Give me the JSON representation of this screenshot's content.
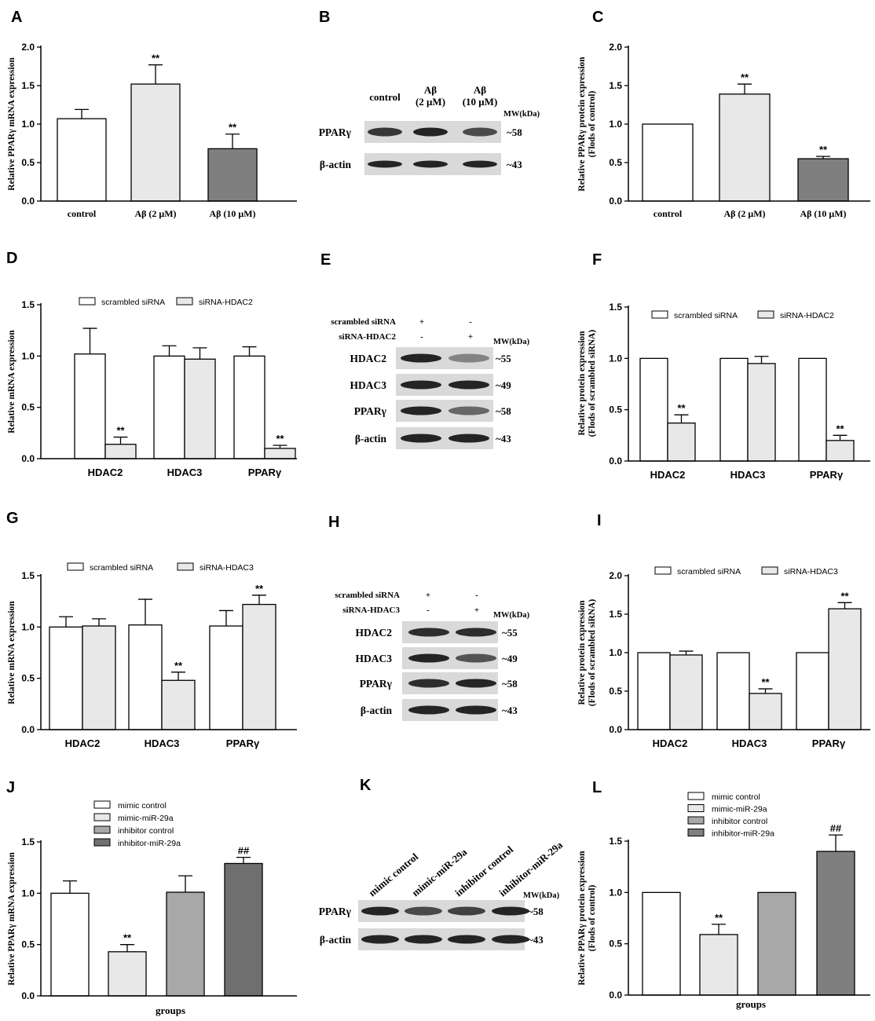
{
  "panel_letters": {
    "A": "A",
    "B": "B",
    "C": "C",
    "D": "D",
    "E": "E",
    "F": "F",
    "G": "G",
    "H": "H",
    "I": "I",
    "J": "J",
    "K": "K",
    "L": "L"
  },
  "colors": {
    "bar_white": "#ffffff",
    "bar_light": "#e8e8e8",
    "bar_mid": "#a8a8a8",
    "bar_dark": "#7f7f7f",
    "blot_bg": "#d9d9d9",
    "band": "#1a1a1a"
  },
  "blots": {
    "B": {
      "headers": [
        "control",
        "Aβ\n(2 μM)",
        "Aβ\n(10 μM)"
      ],
      "mw_label": "MW(kDa)",
      "rows": [
        {
          "label": "PPARγ",
          "kda": "~58"
        },
        {
          "label": "β-actin",
          "kda": "~43"
        }
      ]
    },
    "E": {
      "treatments": [
        {
          "label": "scrambled siRNA",
          "signs": [
            "+",
            "-"
          ]
        },
        {
          "label": "siRNA-HDAC2",
          "signs": [
            "-",
            "+"
          ]
        }
      ],
      "mw_label": "MW(kDa)",
      "rows": [
        {
          "label": "HDAC2",
          "kda": "~55"
        },
        {
          "label": "HDAC3",
          "kda": "~49"
        },
        {
          "label": "PPARγ",
          "kda": "~58"
        },
        {
          "label": "β-actin",
          "kda": "~43"
        }
      ]
    },
    "H": {
      "treatments": [
        {
          "label": "scrambled siRNA",
          "signs": [
            "+",
            "-"
          ]
        },
        {
          "label": "siRNA-HDAC3",
          "signs": [
            "-",
            "+"
          ]
        }
      ],
      "mw_label": "MW(kDa)",
      "rows": [
        {
          "label": "HDAC2",
          "kda": "~55"
        },
        {
          "label": "HDAC3",
          "kda": "~49"
        },
        {
          "label": "PPARγ",
          "kda": "~58"
        },
        {
          "label": "β-actin",
          "kda": "~43"
        }
      ]
    },
    "K": {
      "headers": [
        "mimic control",
        "mimic-miR-29a",
        "inhibitor control",
        "inhibitor-miR-29a"
      ],
      "mw_label": "MW(kDa)",
      "rows": [
        {
          "label": "PPARγ",
          "kda": "~58"
        },
        {
          "label": "β-actin",
          "kda": "~43"
        }
      ]
    }
  },
  "chart_data": [
    {
      "id": "A",
      "type": "bar",
      "title": "",
      "ylabel": "Relative PPARγ  mRNA expression",
      "xlabel": "",
      "ylim": [
        0,
        2.0
      ],
      "yticks": [
        "0.0",
        "0.5",
        "1.0",
        "1.5",
        "2.0"
      ],
      "categories": [
        "control",
        "Aβ (2 μM)",
        "Aβ (10 μM)"
      ],
      "values": [
        1.07,
        1.52,
        0.68
      ],
      "errors": [
        0.12,
        0.25,
        0.19
      ],
      "annotations": [
        "",
        "**",
        "**"
      ],
      "fills": [
        "white",
        "light",
        "dark"
      ]
    },
    {
      "id": "C",
      "type": "bar",
      "title": "",
      "ylabel": "Relative PPARγ  protein expression\n(Flods of control)",
      "xlabel": "",
      "ylim": [
        0,
        2.0
      ],
      "yticks": [
        "0.0",
        "0.5",
        "1.0",
        "1.5",
        "2.0"
      ],
      "categories": [
        "control",
        "Aβ (2 μM)",
        "Aβ (10 μM)"
      ],
      "values": [
        1.0,
        1.39,
        0.55
      ],
      "errors": [
        0.0,
        0.13,
        0.03
      ],
      "annotations": [
        "",
        "**",
        "**"
      ],
      "fills": [
        "white",
        "light",
        "dark"
      ]
    },
    {
      "id": "D",
      "type": "bar",
      "title": "",
      "ylabel": "Relative mRNA expression",
      "xlabel": "",
      "ylim": [
        0,
        1.5
      ],
      "yticks": [
        "0.0",
        "0.5",
        "1.0",
        "1.5"
      ],
      "categories": [
        "HDAC2",
        "HDAC3",
        "PPARγ"
      ],
      "series": [
        {
          "name": "scrambled siRNA",
          "values": [
            1.02,
            1.0,
            1.0
          ],
          "errors": [
            0.25,
            0.1,
            0.09
          ],
          "annotations": [
            "",
            "",
            ""
          ]
        },
        {
          "name": "siRNA-HDAC2",
          "values": [
            0.14,
            0.97,
            0.1
          ],
          "errors": [
            0.07,
            0.11,
            0.03
          ],
          "annotations": [
            "**",
            "",
            "**"
          ]
        }
      ]
    },
    {
      "id": "F",
      "type": "bar",
      "title": "",
      "ylabel": "Relative protein expression\n(Flods of scrambled siRNA)",
      "xlabel": "",
      "ylim": [
        0,
        1.5
      ],
      "yticks": [
        "0.0",
        "0.5",
        "1.0",
        "1.5"
      ],
      "categories": [
        "HDAC2",
        "HDAC3",
        "PPARγ"
      ],
      "series": [
        {
          "name": "scrambled siRNA",
          "values": [
            1.0,
            1.0,
            1.0
          ],
          "errors": [
            0.0,
            0.0,
            0.0
          ],
          "annotations": [
            "",
            "",
            ""
          ]
        },
        {
          "name": "siRNA-HDAC2",
          "values": [
            0.37,
            0.95,
            0.2
          ],
          "errors": [
            0.08,
            0.07,
            0.05
          ],
          "annotations": [
            "**",
            "",
            "**"
          ]
        }
      ]
    },
    {
      "id": "G",
      "type": "bar",
      "title": "",
      "ylabel": "Relative mRNA expression",
      "xlabel": "",
      "ylim": [
        0,
        1.5
      ],
      "yticks": [
        "0.0",
        "0.5",
        "1.0",
        "1.5"
      ],
      "categories": [
        "HDAC2",
        "HDAC3",
        "PPARγ"
      ],
      "series": [
        {
          "name": "scrambled siRNA",
          "values": [
            1.0,
            1.02,
            1.01
          ],
          "errors": [
            0.1,
            0.25,
            0.15
          ],
          "annotations": [
            "",
            "",
            ""
          ]
        },
        {
          "name": "siRNA-HDAC3",
          "values": [
            1.01,
            0.48,
            1.22
          ],
          "errors": [
            0.07,
            0.08,
            0.09
          ],
          "annotations": [
            "",
            "**",
            "**"
          ]
        }
      ]
    },
    {
      "id": "I",
      "type": "bar",
      "title": "",
      "ylabel": "Relative protein expression\n(Flods of scrambled siRNA)",
      "xlabel": "",
      "ylim": [
        0,
        2.0
      ],
      "yticks": [
        "0.0",
        "0.5",
        "1.0",
        "1.5",
        "2.0"
      ],
      "categories": [
        "HDAC2",
        "HDAC3",
        "PPARγ"
      ],
      "series": [
        {
          "name": "scrambled siRNA",
          "values": [
            1.0,
            1.0,
            1.0
          ],
          "errors": [
            0.0,
            0.0,
            0.0
          ],
          "annotations": [
            "",
            "",
            ""
          ]
        },
        {
          "name": "siRNA-HDAC3",
          "values": [
            0.97,
            0.47,
            1.57
          ],
          "errors": [
            0.05,
            0.06,
            0.08
          ],
          "annotations": [
            "",
            "**",
            "**"
          ]
        }
      ]
    },
    {
      "id": "J",
      "type": "bar",
      "title": "",
      "ylabel": "Relative PPARγ  mRNA expression",
      "xlabel": "groups",
      "ylim": [
        0,
        1.5
      ],
      "yticks": [
        "0.0",
        "0.5",
        "1.0",
        "1.5"
      ],
      "categories": [
        "mimic control",
        "mimic-miR-29a",
        "inhibitor control",
        "inhibitor-miR-29a"
      ],
      "values": [
        1.0,
        0.43,
        1.01,
        1.29
      ],
      "errors": [
        0.12,
        0.07,
        0.16,
        0.06
      ],
      "annotations": [
        "",
        "**",
        "",
        "##"
      ],
      "fills": [
        "white",
        "light",
        "mid",
        "darker"
      ]
    },
    {
      "id": "L",
      "type": "bar",
      "title": "",
      "ylabel": "Relative PPARγ  protein expression\n(Flods of control)",
      "xlabel": "groups",
      "ylim": [
        0,
        1.5
      ],
      "yticks": [
        "0.0",
        "0.5",
        "1.0",
        "1.5"
      ],
      "categories": [
        "mimic control",
        "mimic-miR-29a",
        "inhibitor control",
        "inhibitor-miR-29a"
      ],
      "values": [
        1.0,
        0.59,
        1.0,
        1.4
      ],
      "errors": [
        0.0,
        0.1,
        0.0,
        0.16
      ],
      "annotations": [
        "",
        "**",
        "",
        "##"
      ],
      "fills": [
        "white",
        "light",
        "mid",
        "dark"
      ]
    }
  ]
}
